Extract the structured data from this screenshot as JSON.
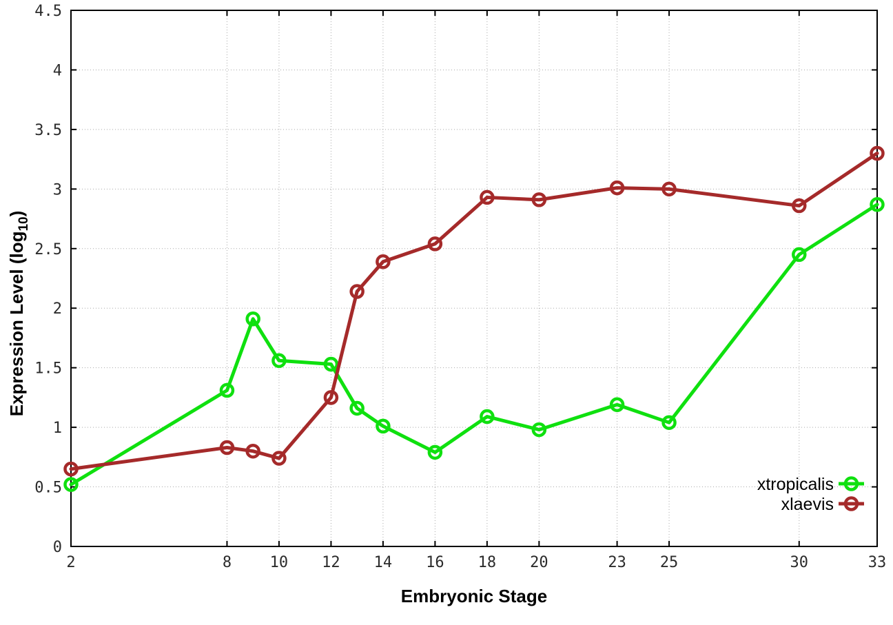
{
  "figure": {
    "background_color": "#ffffff",
    "border_color": "#000000",
    "grid_color": "#a8a8a8",
    "tick_label_color": "#2b2b2b"
  },
  "chart_data": {
    "type": "line",
    "title": "",
    "xlabel": "Embryonic Stage",
    "ylabel": {
      "prefix": "Expression Level (log",
      "sub": "10",
      "suffix": ")"
    },
    "xlim": [
      2,
      33
    ],
    "ylim": [
      0,
      4.5
    ],
    "grid": true,
    "legend_position": "inside-bottom-right",
    "xticks": [
      2,
      8,
      10,
      12,
      14,
      16,
      18,
      20,
      23,
      25,
      30,
      33
    ],
    "xtick_labels": [
      "2",
      "8",
      "10",
      "12",
      "14",
      "16",
      "18",
      "20",
      "23",
      "25",
      "30",
      "33"
    ],
    "yticks": [
      0,
      0.5,
      1,
      1.5,
      2,
      2.5,
      3,
      3.5,
      4,
      4.5
    ],
    "ytick_labels": [
      "0",
      "0.5",
      "1",
      "1.5",
      "2",
      "2.5",
      "3",
      "3.5",
      "4",
      "4.5"
    ],
    "x": [
      2,
      8,
      9,
      10,
      12,
      13,
      14,
      16,
      18,
      20,
      23,
      25,
      30,
      33
    ],
    "marker": "open-circle",
    "series": [
      {
        "name": "xtropicalis",
        "color": "#0fe00f",
        "values": [
          0.52,
          1.31,
          1.91,
          1.56,
          1.53,
          1.16,
          1.01,
          0.79,
          1.09,
          0.98,
          1.19,
          1.04,
          2.45,
          2.87
        ]
      },
      {
        "name": "xlaevis",
        "color": "#a52a2a",
        "values": [
          0.65,
          0.83,
          0.8,
          0.74,
          1.25,
          2.14,
          2.39,
          2.54,
          2.93,
          2.91,
          3.01,
          3.0,
          2.86,
          3.3
        ]
      }
    ]
  }
}
